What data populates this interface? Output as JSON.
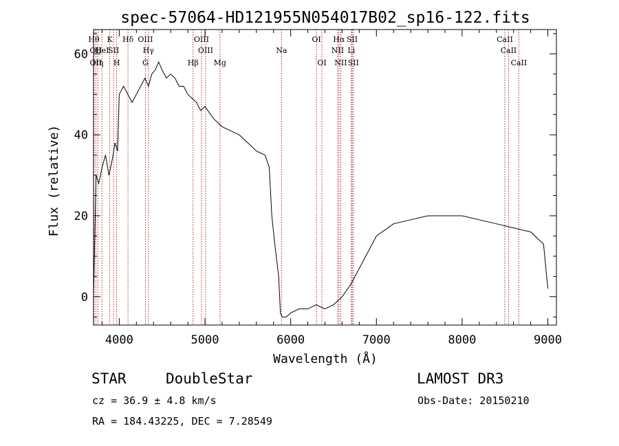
{
  "chart_data": {
    "type": "line",
    "title": "spec-57064-HD121955N054017B02_sp16-122.fits",
    "xlabel": "Wavelength (Å)",
    "ylabel": "Flux (relative)",
    "xlim": [
      3700,
      9100
    ],
    "ylim": [
      -7,
      66
    ],
    "x_ticks": [
      4000,
      5000,
      6000,
      7000,
      8000,
      9000
    ],
    "x_tick_labels": [
      "4000",
      "5000",
      "6000",
      "7000",
      "8000",
      "9000"
    ],
    "y_ticks": [
      0,
      20,
      40,
      60
    ],
    "y_tick_labels": [
      "0",
      "20",
      "40",
      "60"
    ],
    "series": [
      {
        "name": "flux",
        "x": [
          3700,
          3730,
          3760,
          3800,
          3840,
          3880,
          3920,
          3950,
          3980,
          4000,
          4050,
          4100,
          4150,
          4200,
          4250,
          4300,
          4340,
          4380,
          4420,
          4460,
          4500,
          4550,
          4600,
          4650,
          4700,
          4750,
          4800,
          4850,
          4900,
          4950,
          5000,
          5100,
          5200,
          5300,
          5400,
          5500,
          5600,
          5700,
          5750,
          5780,
          5820,
          5860,
          5880,
          5900,
          5950,
          6000,
          6100,
          6200,
          6300,
          6400,
          6500,
          6600,
          6700,
          6800,
          6900,
          7000,
          7200,
          7400,
          7600,
          7800,
          8000,
          8200,
          8400,
          8600,
          8800,
          8950,
          9000
        ],
        "y": [
          0,
          30,
          28,
          32,
          35,
          30,
          34,
          38,
          36,
          50,
          52,
          50,
          48,
          50,
          52,
          54,
          52,
          55,
          56,
          58,
          56,
          54,
          55,
          54,
          52,
          52,
          50,
          49,
          48,
          46,
          47,
          44,
          42,
          41,
          40,
          38,
          36,
          35,
          32,
          20,
          12,
          5,
          -4,
          -5,
          -5,
          -4,
          -3,
          -3,
          -2,
          -3,
          -2,
          0,
          3,
          7,
          11,
          15,
          18,
          19,
          20,
          20,
          20,
          19,
          18,
          17,
          16,
          13,
          2
        ]
      }
    ],
    "line_labels": [
      {
        "wavelength": 3704,
        "label": "Hθ",
        "row": 1
      },
      {
        "wavelength": 3727,
        "label": "OII",
        "row": 2
      },
      {
        "wavelength": 3727,
        "label": "OII",
        "row": 3
      },
      {
        "wavelength": 3750,
        "label": "Hη",
        "row": 3
      },
      {
        "wavelength": 3798,
        "label": "HeI",
        "row": 2
      },
      {
        "wavelength": 3889,
        "label": "K",
        "row": 1
      },
      {
        "wavelength": 3934,
        "label": "SII",
        "row": 2
      },
      {
        "wavelength": 3970,
        "label": "H",
        "row": 3
      },
      {
        "wavelength": 4102,
        "label": "Hδ",
        "row": 1
      },
      {
        "wavelength": 4305,
        "label": "OIII",
        "row": 1
      },
      {
        "wavelength": 4340,
        "label": "Hγ",
        "row": 2
      },
      {
        "wavelength": 4305,
        "label": "G",
        "row": 3
      },
      {
        "wavelength": 4861,
        "label": "Hβ",
        "row": 3
      },
      {
        "wavelength": 4959,
        "label": "OIII",
        "row": 1
      },
      {
        "wavelength": 5007,
        "label": "OIII",
        "row": 2
      },
      {
        "wavelength": 5175,
        "label": "Mg",
        "row": 3
      },
      {
        "wavelength": 5893,
        "label": "Na",
        "row": 2
      },
      {
        "wavelength": 6300,
        "label": "OI",
        "row": 1
      },
      {
        "wavelength": 6364,
        "label": "OI",
        "row": 3
      },
      {
        "wavelength": 6563,
        "label": "Hα",
        "row": 1
      },
      {
        "wavelength": 6548,
        "label": "NII",
        "row": 2
      },
      {
        "wavelength": 6584,
        "label": "NII",
        "row": 3
      },
      {
        "wavelength": 6708,
        "label": "Li",
        "row": 2
      },
      {
        "wavelength": 6717,
        "label": "SII",
        "row": 1
      },
      {
        "wavelength": 6731,
        "label": "SII",
        "row": 3
      },
      {
        "wavelength": 8498,
        "label": "CaII",
        "row": 1
      },
      {
        "wavelength": 8542,
        "label": "CaII",
        "row": 2
      },
      {
        "wavelength": 8662,
        "label": "CaII",
        "row": 3
      }
    ],
    "line_color": "#000000",
    "marker_color": "#b22222"
  },
  "info": {
    "class": "STAR",
    "subclass": "DoubleStar",
    "survey": "LAMOST DR3",
    "cz": "cz = 36.9 ± 4.8 km/s",
    "obs_date": "Obs-Date: 20150210",
    "radec": "RA = 184.43225, DEC =   7.28549"
  }
}
